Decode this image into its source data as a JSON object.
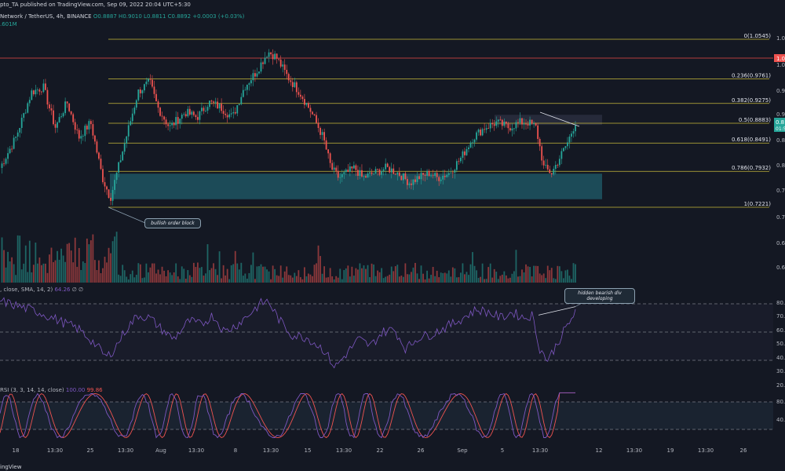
{
  "header": {
    "title": "pto_TA published on TradingView.com, Sep 09, 2022 20:04 UTC+5:30",
    "symbol": "Network / TetherUS, 4h, BINANCE",
    "ohlc": "O0.8887 H0.9010 L0.8811 C0.8892 +0.0003 (+0.03%)",
    "volume": ".601M"
  },
  "indicators": {
    "rsi_label": ", close, SMA, 14, 2)",
    "rsi_value": "64.26",
    "rsi_suffix": "∅ ∅",
    "stoch_label": "RSI (3, 3, 14, 14, close)",
    "stoch_k": "100.00",
    "stoch_d": "99.86"
  },
  "annotations": {
    "order_block": "bullish order block",
    "divergence": "hidden bearish div developing"
  },
  "footer": {
    "brand": "ingView"
  },
  "colors": {
    "bg": "#141823",
    "up": "#26a69a",
    "down": "#ef5350",
    "fib": "#c7b93a",
    "rsi": "#7e57c2",
    "zone": "#1f5c6b",
    "red_line": "#b33c3c"
  },
  "chart_data": {
    "type": "candlestick",
    "price_axis": {
      "ticks": [
        "1.0",
        "1.0",
        "0.9",
        "0.9",
        "0.8",
        "0.8",
        "0.7",
        "0.7",
        "0.6",
        "0.6"
      ],
      "current_price": "0.8",
      "current_price_sub": "01:5",
      "red_level_label": "1.0"
    },
    "price_red_level": 1.02,
    "fib_levels": [
      {
        "label": "0(1.0545)",
        "value": 1.0545
      },
      {
        "label": "0.236(0.9761)",
        "value": 0.9761
      },
      {
        "label": "0.382(0.9275)",
        "value": 0.9275
      },
      {
        "label": "0.5(0.8883)",
        "value": 0.8883
      },
      {
        "label": "0.618(0.8491)",
        "value": 0.8491
      },
      {
        "label": "0.786(0.7932)",
        "value": 0.7932
      },
      {
        "label": "1(0.7221)",
        "value": 0.7221
      }
    ],
    "order_block_zone": [
      0.738,
      0.7885
    ],
    "x_ticks": [
      "18",
      "13:30",
      "25",
      "13:30",
      "Aug",
      "13:30",
      "8",
      "13:30",
      "15",
      "13:30",
      "22",
      "26",
      "Sep",
      "5",
      "13:30",
      "12",
      "13:30",
      "19",
      "13:30",
      "26"
    ],
    "rsi_axis": [
      "80.",
      "70.",
      "60.",
      "50.",
      "40.",
      "30.",
      "20."
    ],
    "rsi_levels": [
      70,
      50,
      30
    ],
    "stoch_axis": [
      "80.",
      "40."
    ],
    "stoch_levels": [
      80,
      20
    ],
    "price_anchors": [
      [
        0,
        0.8
      ],
      [
        4,
        0.86
      ],
      [
        8,
        0.95
      ],
      [
        11,
        0.96
      ],
      [
        14,
        0.88
      ],
      [
        17,
        0.93
      ],
      [
        20,
        0.86
      ],
      [
        23,
        0.89
      ],
      [
        26,
        0.78
      ],
      [
        28,
        0.74
      ],
      [
        30,
        0.8
      ],
      [
        32,
        0.86
      ],
      [
        35,
        0.95
      ],
      [
        38,
        0.97
      ],
      [
        40,
        0.92
      ],
      [
        43,
        0.88
      ],
      [
        47,
        0.91
      ],
      [
        50,
        0.9
      ],
      [
        53,
        0.93
      ],
      [
        56,
        0.92
      ],
      [
        59,
        0.9
      ],
      [
        62,
        0.96
      ],
      [
        65,
        0.99
      ],
      [
        68,
        1.03
      ],
      [
        70,
        1.02
      ],
      [
        73,
        0.98
      ],
      [
        76,
        0.95
      ],
      [
        79,
        0.91
      ],
      [
        82,
        0.86
      ],
      [
        84,
        0.8
      ],
      [
        86,
        0.78
      ],
      [
        88,
        0.79
      ],
      [
        90,
        0.8
      ],
      [
        92,
        0.78
      ],
      [
        95,
        0.79
      ],
      [
        98,
        0.8
      ],
      [
        101,
        0.79
      ],
      [
        104,
        0.77
      ],
      [
        106,
        0.78
      ],
      [
        109,
        0.79
      ],
      [
        111,
        0.78
      ],
      [
        114,
        0.79
      ],
      [
        117,
        0.82
      ],
      [
        120,
        0.86
      ],
      [
        123,
        0.88
      ],
      [
        126,
        0.89
      ],
      [
        129,
        0.88
      ],
      [
        132,
        0.89
      ],
      [
        134,
        0.89
      ],
      [
        136,
        0.88
      ],
      [
        138,
        0.8
      ],
      [
        140,
        0.79
      ],
      [
        142,
        0.82
      ],
      [
        144,
        0.85
      ],
      [
        146,
        0.89
      ]
    ],
    "rsi_anchors": [
      [
        0,
        72
      ],
      [
        5,
        68
      ],
      [
        10,
        64
      ],
      [
        15,
        58
      ],
      [
        20,
        52
      ],
      [
        24,
        42
      ],
      [
        27,
        32
      ],
      [
        29,
        38
      ],
      [
        32,
        52
      ],
      [
        35,
        62
      ],
      [
        38,
        60
      ],
      [
        41,
        52
      ],
      [
        44,
        45
      ],
      [
        48,
        58
      ],
      [
        51,
        55
      ],
      [
        54,
        62
      ],
      [
        57,
        50
      ],
      [
        60,
        55
      ],
      [
        63,
        62
      ],
      [
        66,
        70
      ],
      [
        68,
        72
      ],
      [
        71,
        58
      ],
      [
        74,
        48
      ],
      [
        78,
        46
      ],
      [
        82,
        38
      ],
      [
        85,
        25
      ],
      [
        88,
        35
      ],
      [
        91,
        45
      ],
      [
        94,
        40
      ],
      [
        97,
        50
      ],
      [
        100,
        52
      ],
      [
        103,
        38
      ],
      [
        106,
        46
      ],
      [
        109,
        48
      ],
      [
        112,
        52
      ],
      [
        115,
        56
      ],
      [
        118,
        61
      ],
      [
        121,
        66
      ],
      [
        124,
        64
      ],
      [
        127,
        60
      ],
      [
        130,
        64
      ],
      [
        133,
        60
      ],
      [
        135,
        62
      ],
      [
        137,
        38
      ],
      [
        139,
        30
      ],
      [
        141,
        40
      ],
      [
        143,
        50
      ],
      [
        146,
        64
      ]
    ],
    "volume_note": "volume histogram bars"
  }
}
